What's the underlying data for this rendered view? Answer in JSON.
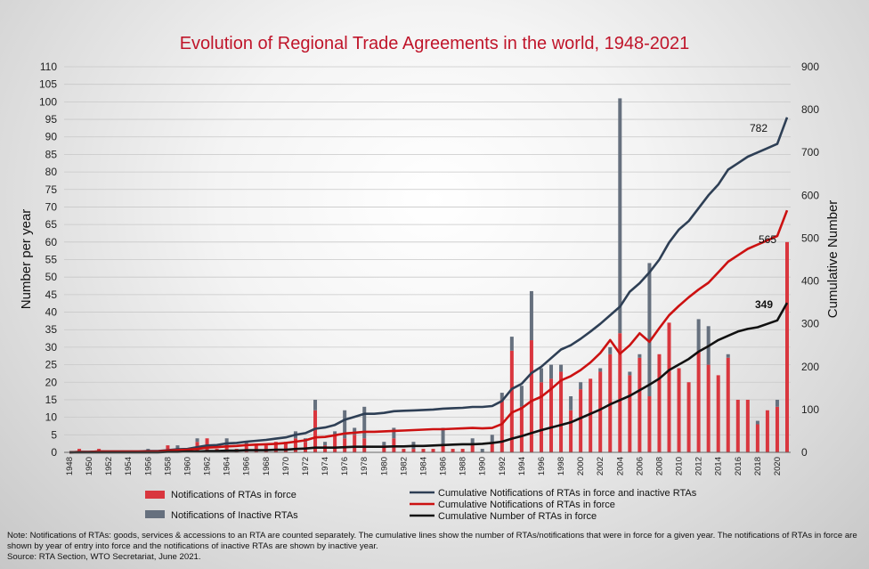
{
  "chart_data": {
    "type": "bar",
    "title": "Evolution of Regional Trade Agreements in the world, 1948-2021",
    "ylabel": "Number per year",
    "y2label": "Cumulative Number",
    "ylim": [
      0,
      110
    ],
    "y2lim": [
      0,
      900
    ],
    "yticks": [
      0,
      5,
      10,
      15,
      20,
      25,
      30,
      35,
      40,
      45,
      50,
      55,
      60,
      65,
      70,
      75,
      80,
      85,
      90,
      95,
      100,
      105,
      110
    ],
    "y2ticks": [
      0,
      100,
      200,
      300,
      400,
      500,
      600,
      700,
      800,
      900
    ],
    "x": [
      1948,
      1949,
      1950,
      1951,
      1952,
      1953,
      1954,
      1955,
      1956,
      1957,
      1958,
      1959,
      1960,
      1961,
      1962,
      1963,
      1964,
      1965,
      1966,
      1967,
      1968,
      1969,
      1970,
      1971,
      1972,
      1973,
      1974,
      1975,
      1976,
      1977,
      1978,
      1979,
      1980,
      1981,
      1982,
      1983,
      1984,
      1985,
      1986,
      1987,
      1988,
      1989,
      1990,
      1991,
      1992,
      1993,
      1994,
      1995,
      1996,
      1997,
      1998,
      1999,
      2000,
      2001,
      2002,
      2003,
      2004,
      2005,
      2006,
      2007,
      2008,
      2009,
      2010,
      2011,
      2012,
      2013,
      2014,
      2015,
      2016,
      2017,
      2018,
      2019,
      2020,
      2021
    ],
    "xtick_labels": [
      "1948",
      "1950",
      "1952",
      "1954",
      "1956",
      "1958",
      "1960",
      "1962",
      "1964",
      "1966",
      "1968",
      "1970",
      "1972",
      "1974",
      "1976",
      "1978",
      "1980",
      "1982",
      "1984",
      "1986",
      "1988",
      "1990",
      "1992",
      "1994",
      "1996",
      "1998",
      "2000",
      "2002",
      "2004",
      "2006",
      "2008",
      "2010",
      "2012",
      "2014",
      "2016",
      "2018",
      "2020"
    ],
    "series": [
      {
        "name": "Notifications of RTAs in force",
        "kind": "bar",
        "color": "#d9363e",
        "values": [
          0,
          1,
          0,
          1,
          0,
          0,
          0,
          0,
          0,
          0,
          2,
          1,
          1,
          3,
          4,
          1,
          2,
          1,
          2,
          2,
          2,
          3,
          3,
          4,
          3,
          12,
          2,
          5,
          4,
          5,
          4,
          0,
          2,
          4,
          1,
          1,
          1,
          1,
          2,
          1,
          1,
          2,
          0,
          3,
          15,
          29,
          13,
          32,
          20,
          21,
          23,
          12,
          18,
          21,
          23,
          28,
          34,
          22,
          27,
          16,
          28,
          37,
          24,
          20,
          29,
          25,
          22,
          27,
          15,
          15,
          8,
          12,
          13,
          60
        ]
      },
      {
        "name": "Notifications of Inactive RTAs",
        "kind": "bar",
        "color": "#66707e",
        "values": [
          0,
          0,
          0,
          0,
          0,
          0,
          0,
          0,
          1,
          0,
          0,
          1,
          0,
          1,
          0,
          0,
          2,
          0,
          1,
          0,
          0,
          0,
          0,
          2,
          1,
          3,
          1,
          1,
          8,
          2,
          9,
          0,
          1,
          3,
          0,
          2,
          0,
          0,
          5,
          0,
          0,
          2,
          1,
          2,
          2,
          4,
          6,
          14,
          4,
          4,
          2,
          4,
          2,
          0,
          1,
          2,
          67,
          1,
          1,
          38,
          0,
          0,
          0,
          0,
          9,
          11,
          0,
          1,
          0,
          0,
          1,
          0,
          2,
          0
        ]
      },
      {
        "name": "Cumulative Notifications of RTAs in force and inactive RTAs",
        "kind": "line",
        "axis": "right",
        "color": "#2e3f55",
        "values": [
          0,
          1,
          1,
          2,
          2,
          2,
          2,
          2,
          3,
          3,
          5,
          7,
          8,
          12,
          16,
          17,
          21,
          22,
          25,
          27,
          29,
          32,
          35,
          41,
          45,
          55,
          58,
          64,
          76,
          83,
          90,
          90,
          92,
          96,
          97,
          98,
          99,
          100,
          102,
          103,
          104,
          106,
          106,
          108,
          120,
          148,
          160,
          185,
          200,
          220,
          240,
          250,
          265,
          282,
          300,
          320,
          340,
          375,
          395,
          420,
          450,
          490,
          520,
          540,
          570,
          600,
          625,
          660,
          675,
          690,
          700,
          710,
          720,
          782
        ]
      },
      {
        "name": "Cumulative Notifications of RTAs in force",
        "kind": "line",
        "axis": "right",
        "color": "#cc1111",
        "values": [
          0,
          1,
          1,
          2,
          2,
          2,
          2,
          2,
          2,
          2,
          4,
          5,
          6,
          8,
          11,
          12,
          14,
          15,
          17,
          18,
          19,
          20,
          22,
          25,
          28,
          35,
          36,
          40,
          44,
          46,
          48,
          48,
          49,
          50,
          51,
          52,
          53,
          54,
          54,
          55,
          56,
          57,
          56,
          57,
          66,
          93,
          103,
          120,
          130,
          148,
          168,
          178,
          192,
          210,
          232,
          262,
          230,
          250,
          278,
          258,
          290,
          320,
          342,
          362,
          380,
          396,
          420,
          445,
          460,
          475,
          485,
          495,
          505,
          565
        ]
      },
      {
        "name": "Cumulative Number of RTAs in force",
        "kind": "line",
        "axis": "right",
        "color": "#111111",
        "values": [
          0,
          0,
          0,
          0,
          0,
          0,
          0,
          0,
          0,
          0,
          1,
          1,
          2,
          2,
          3,
          3,
          4,
          4,
          5,
          5,
          5,
          6,
          6,
          8,
          9,
          11,
          11,
          11,
          12,
          13,
          13,
          13,
          13,
          14,
          14,
          15,
          15,
          16,
          17,
          18,
          19,
          19,
          20,
          22,
          25,
          32,
          38,
          45,
          52,
          58,
          64,
          70,
          80,
          90,
          100,
          112,
          122,
          132,
          145,
          158,
          172,
          192,
          205,
          218,
          235,
          248,
          262,
          272,
          282,
          288,
          292,
          300,
          308,
          349
        ]
      }
    ],
    "end_labels": {
      "cumulative_total": "782",
      "cumulative_in_force_notifications": "565",
      "rtas_in_force": "349"
    }
  },
  "notes": [
    "Note: Notifications of RTAs: goods, services & accessions to an RTA are counted separately. The cumulative lines show the number of RTAs/notifications that were in force for a given year. The notifications of RTAs in force are shown by year of entry into force and the notifications of inactive RTAs are shown by inactive year.",
    "Source: RTA Section, WTO Secretariat, June 2021."
  ]
}
